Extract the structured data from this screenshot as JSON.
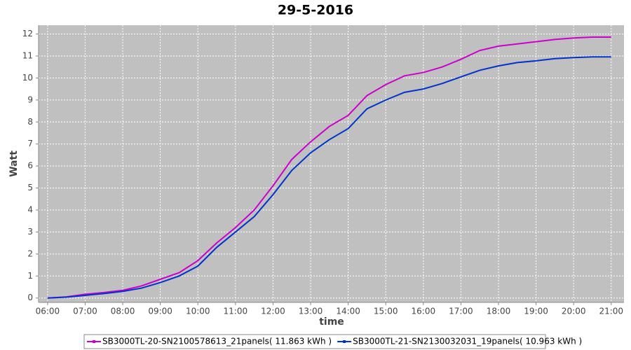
{
  "chart_data": {
    "type": "line",
    "title": "29-5-2016",
    "x_label": "time",
    "y_label": "Watt",
    "x": [
      6,
      6.5,
      7,
      7.5,
      8,
      8.5,
      9,
      9.5,
      10,
      10.5,
      11,
      11.5,
      12,
      12.5,
      13,
      13.5,
      14,
      14.5,
      15,
      15.5,
      16,
      16.5,
      17,
      17.5,
      18,
      18.5,
      19,
      19.5,
      20,
      20.5,
      21
    ],
    "series": [
      {
        "name": "SB3000TL-20-SN2100578613_21panels( 11.863 kWh )",
        "color": "#cc00cc",
        "values": [
          0,
          0.05,
          0.17,
          0.25,
          0.35,
          0.55,
          0.85,
          1.15,
          1.7,
          2.5,
          3.2,
          4.0,
          5.1,
          6.3,
          7.1,
          7.8,
          8.3,
          9.2,
          9.7,
          10.1,
          10.25,
          10.5,
          10.85,
          11.25,
          11.45,
          11.55,
          11.65,
          11.75,
          11.82,
          11.86,
          11.86
        ]
      },
      {
        "name": "SB3000TL-21-SN2130032031_19panels( 10.963 kWh )",
        "color": "#0033cc",
        "values": [
          0,
          0.04,
          0.12,
          0.2,
          0.3,
          0.45,
          0.7,
          1.0,
          1.45,
          2.3,
          3.0,
          3.7,
          4.7,
          5.8,
          6.6,
          7.2,
          7.7,
          8.6,
          9.0,
          9.35,
          9.5,
          9.75,
          10.05,
          10.35,
          10.55,
          10.7,
          10.78,
          10.88,
          10.93,
          10.96,
          10.96
        ]
      }
    ],
    "xlim": [
      5.76,
      21.34
    ],
    "xticks": [
      {
        "value": 6,
        "label": "06:00"
      },
      {
        "value": 7,
        "label": "07:00"
      },
      {
        "value": 8,
        "label": "08:00"
      },
      {
        "value": 9,
        "label": "09:00"
      },
      {
        "value": 10,
        "label": "10:00"
      },
      {
        "value": 11,
        "label": "11:00"
      },
      {
        "value": 12,
        "label": "12:00"
      },
      {
        "value": 13,
        "label": "13:00"
      },
      {
        "value": 14,
        "label": "14:00"
      },
      {
        "value": 15,
        "label": "15:00"
      },
      {
        "value": 16,
        "label": "16:00"
      },
      {
        "value": 17,
        "label": "17:00"
      },
      {
        "value": 18,
        "label": "18:00"
      },
      {
        "value": 19,
        "label": "19:00"
      },
      {
        "value": 20,
        "label": "20:00"
      },
      {
        "value": 21,
        "label": "21:00"
      }
    ],
    "ylim": [
      -0.2,
      12.4
    ],
    "yticks": [
      0,
      1,
      2,
      3,
      4,
      5,
      6,
      7,
      8,
      9,
      10,
      11,
      12
    ],
    "grid": true,
    "legend": "bottom"
  }
}
